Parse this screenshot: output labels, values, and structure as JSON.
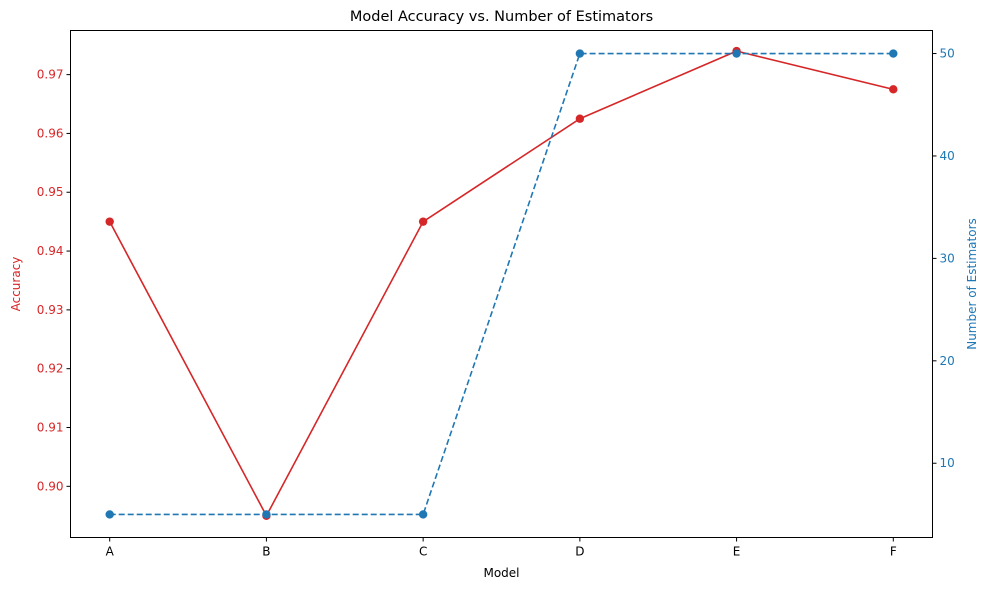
{
  "chart_data": {
    "type": "line",
    "title": "Model Accuracy vs. Number of Estimators",
    "xlabel": "Model",
    "categories": [
      "A",
      "B",
      "C",
      "D",
      "E",
      "F"
    ],
    "grid": false,
    "y_left": {
      "label": "Accuracy",
      "color": "#d62728",
      "ylim": [
        0.8913,
        0.9775
      ],
      "ticks": [
        0.9,
        0.91,
        0.92,
        0.93,
        0.94,
        0.95,
        0.96,
        0.97
      ],
      "tick_labels": [
        "0.90",
        "0.91",
        "0.92",
        "0.93",
        "0.94",
        "0.95",
        "0.96",
        "0.97"
      ]
    },
    "y_right": {
      "label": "Number of Estimators",
      "color": "#1f77b4",
      "ylim": [
        2.75,
        52.25
      ],
      "ticks": [
        10,
        20,
        30,
        40,
        50
      ],
      "tick_labels": [
        "10",
        "20",
        "30",
        "40",
        "50"
      ]
    },
    "series": [
      {
        "axis": "left",
        "color": "#d62728",
        "linestyle": "solid",
        "marker": "circle",
        "values": [
          0.945,
          0.895,
          0.945,
          0.9625,
          0.974,
          0.9675
        ]
      },
      {
        "axis": "right",
        "color": "#1f77b4",
        "linestyle": "dashed",
        "marker": "circle",
        "values": [
          5,
          5,
          5,
          50,
          50,
          50
        ]
      }
    ]
  }
}
